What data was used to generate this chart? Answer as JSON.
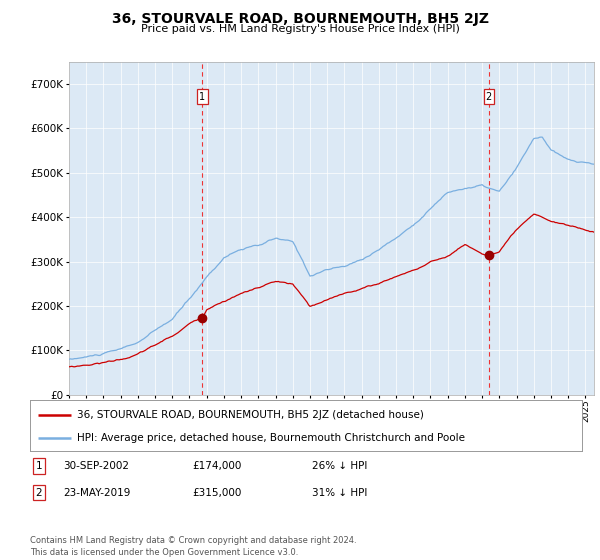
{
  "title": "36, STOURVALE ROAD, BOURNEMOUTH, BH5 2JZ",
  "subtitle": "Price paid vs. HM Land Registry's House Price Index (HPI)",
  "legend_line1": "36, STOURVALE ROAD, BOURNEMOUTH, BH5 2JZ (detached house)",
  "legend_line2": "HPI: Average price, detached house, Bournemouth Christchurch and Poole",
  "transaction1_date": "30-SEP-2002",
  "transaction1_price": "£174,000",
  "transaction1_hpi": "26% ↓ HPI",
  "transaction2_date": "23-MAY-2019",
  "transaction2_price": "£315,000",
  "transaction2_hpi": "31% ↓ HPI",
  "footer": "Contains HM Land Registry data © Crown copyright and database right 2024.\nThis data is licensed under the Open Government Licence v3.0.",
  "bg_color": "#dce9f5",
  "red_line_color": "#cc0000",
  "blue_line_color": "#7aafe0",
  "marker_color": "#990000",
  "dashed_color": "#ee3333",
  "transaction1_x": 2002.75,
  "transaction2_x": 2019.39,
  "ylim": [
    0,
    750000
  ],
  "xlim_start": 1995.0,
  "xlim_end": 2025.5
}
